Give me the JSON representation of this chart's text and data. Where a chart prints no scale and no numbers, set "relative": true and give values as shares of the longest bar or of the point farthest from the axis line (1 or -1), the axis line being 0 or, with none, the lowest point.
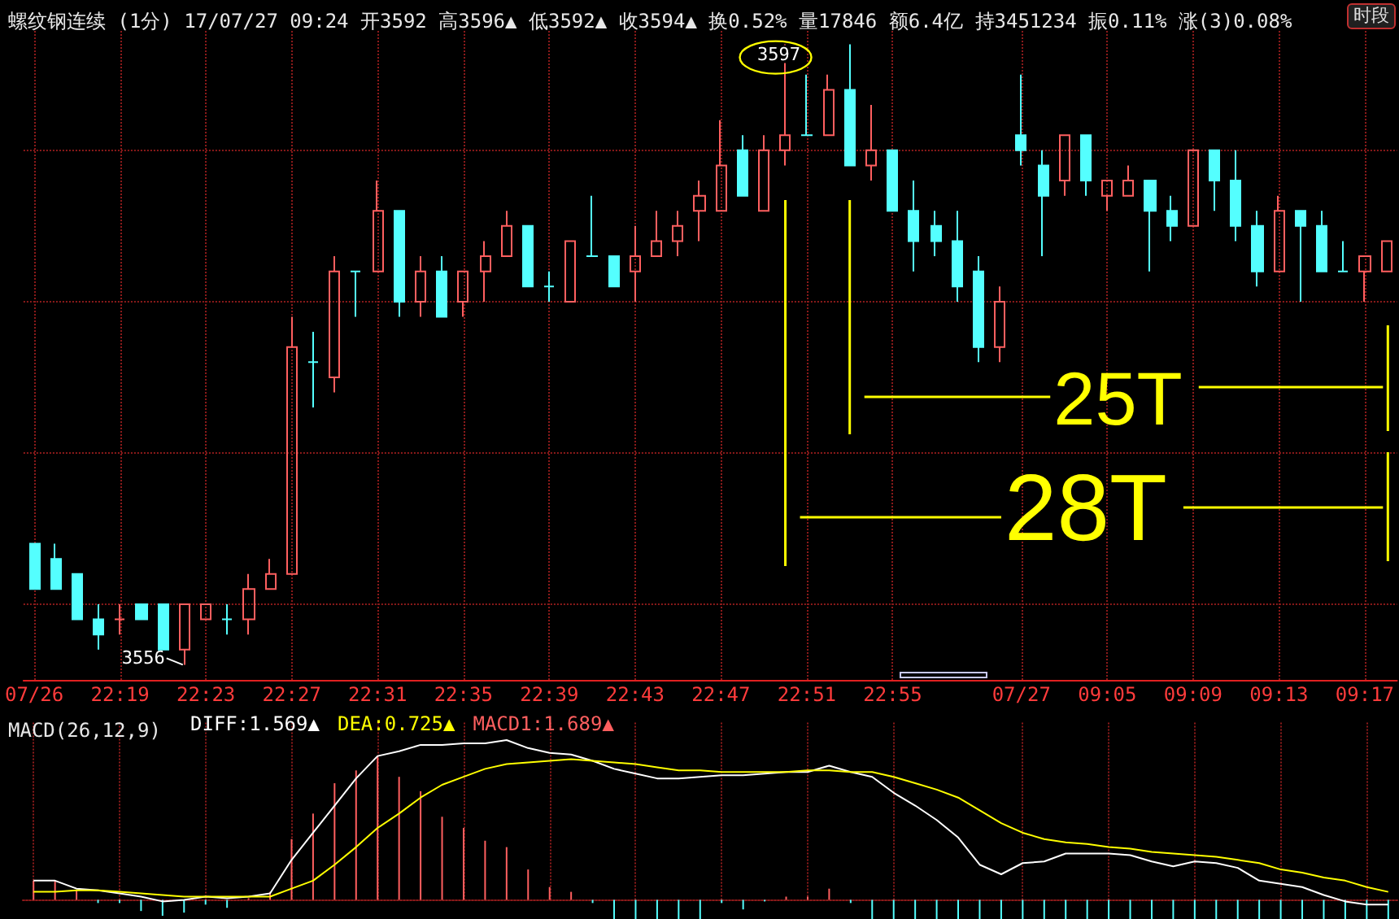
{
  "chart_data": [
    {
      "type": "candlestick",
      "title": "螺纹钢连续 (1分) 17/07/27 09:24 开3592 高3596▲ 低3592▲ 收3594▲ 换0.52% 量17846 额6.4亿 持3451234 振0.11% 涨(3)0.08%",
      "categories": [
        "07/26",
        null,
        null,
        null,
        "22:19",
        null,
        null,
        null,
        "22:23",
        null,
        null,
        null,
        "22:27",
        null,
        null,
        null,
        "22:31",
        null,
        null,
        null,
        "22:35",
        null,
        null,
        null,
        "22:39",
        null,
        null,
        null,
        "22:43",
        null,
        null,
        null,
        "22:47",
        null,
        null,
        null,
        "22:51",
        null,
        null,
        null,
        "22:55",
        null,
        null,
        null,
        null,
        null,
        "07/27",
        null,
        null,
        null,
        "09:05",
        null,
        null,
        null,
        "09:09",
        null,
        null,
        null,
        "09:13",
        null,
        null,
        null,
        "09:17",
        null
      ],
      "ohlc": [
        [
          3564,
          3564,
          3561,
          3561
        ],
        [
          3563,
          3564,
          3561,
          3561
        ],
        [
          3562,
          3562,
          3559,
          3559
        ],
        [
          3559,
          3560,
          3557,
          3558
        ],
        [
          3559,
          3560,
          3558,
          3559
        ],
        [
          3560,
          3560,
          3559,
          3559
        ],
        [
          3560,
          3560,
          3557,
          3557
        ],
        [
          3557,
          3560,
          3556,
          3560
        ],
        [
          3559,
          3560,
          3559,
          3560
        ],
        [
          3559,
          3560,
          3558,
          3559
        ],
        [
          3559,
          3562,
          3558,
          3561
        ],
        [
          3561,
          3563,
          3561,
          3562
        ],
        [
          3562,
          3579,
          3562,
          3577
        ],
        [
          3576,
          3578,
          3573,
          3576
        ],
        [
          3575,
          3583,
          3574,
          3582
        ],
        [
          3582,
          3582,
          3579,
          3582
        ],
        [
          3582,
          3588,
          3582,
          3586
        ],
        [
          3586,
          3586,
          3579,
          3580
        ],
        [
          3580,
          3583,
          3579,
          3582
        ],
        [
          3582,
          3583,
          3579,
          3579
        ],
        [
          3580,
          3582,
          3579,
          3582
        ],
        [
          3582,
          3584,
          3580,
          3583
        ],
        [
          3583,
          3586,
          3583,
          3585
        ],
        [
          3585,
          3585,
          3581,
          3581
        ],
        [
          3581,
          3582,
          3580,
          3581
        ],
        [
          3580,
          3584,
          3580,
          3584
        ],
        [
          3583,
          3587,
          3583,
          3583
        ],
        [
          3583,
          3583,
          3581,
          3581
        ],
        [
          3582,
          3585,
          3580,
          3583
        ],
        [
          3583,
          3586,
          3583,
          3584
        ],
        [
          3584,
          3586,
          3583,
          3585
        ],
        [
          3586,
          3588,
          3584,
          3587
        ],
        [
          3586,
          3592,
          3586,
          3589
        ],
        [
          3590,
          3591,
          3587,
          3587
        ],
        [
          3586,
          3591,
          3586,
          3590
        ],
        [
          3590,
          3597,
          3589,
          3591
        ],
        [
          3591,
          3595,
          3591,
          3591
        ],
        [
          3591,
          3595,
          3591,
          3594
        ],
        [
          3594,
          3597,
          3589,
          3589
        ],
        [
          3589,
          3593,
          3588,
          3590
        ],
        [
          3590,
          3590,
          3586,
          3586
        ],
        [
          3586,
          3588,
          3582,
          3584
        ],
        [
          3585,
          3586,
          3583,
          3584
        ],
        [
          3584,
          3586,
          3580,
          3581
        ],
        [
          3582,
          3583,
          3576,
          3577
        ],
        [
          3577,
          3581,
          3576,
          3580
        ],
        [
          3591,
          3595,
          3589,
          3590
        ],
        [
          3589,
          3590,
          3583,
          3587
        ],
        [
          3588,
          3591,
          3587,
          3591
        ],
        [
          3591,
          3591,
          3587,
          3588
        ],
        [
          3587,
          3588,
          3586,
          3588
        ],
        [
          3587,
          3589,
          3587,
          3588
        ],
        [
          3588,
          3588,
          3582,
          3586
        ],
        [
          3586,
          3587,
          3584,
          3585
        ],
        [
          3585,
          3590,
          3585,
          3590
        ],
        [
          3590,
          3590,
          3586,
          3588
        ],
        [
          3588,
          3590,
          3584,
          3585
        ],
        [
          3585,
          3586,
          3581,
          3582
        ],
        [
          3582,
          3587,
          3582,
          3586
        ],
        [
          3586,
          3586,
          3580,
          3585
        ],
        [
          3585,
          3586,
          3582,
          3582
        ],
        [
          3582,
          3584,
          3582,
          3582
        ],
        [
          3582,
          3583,
          3580,
          3583
        ],
        [
          3582,
          3584,
          3582,
          3584
        ]
      ],
      "colors": [
        "#54ffff",
        "#54ffff",
        "#54ffff",
        "#54ffff",
        "#ff5f5f",
        "#54ffff",
        "#54ffff",
        "#ff5f5f",
        "#ff5f5f",
        "#54ffff",
        "#ff5f5f",
        "#ff5f5f",
        "#ff5f5f",
        "#54ffff",
        "#ff5f5f",
        "#54ffff",
        "#ff5f5f",
        "#54ffff",
        "#ff5f5f",
        "#54ffff",
        "#ff5f5f",
        "#ff5f5f",
        "#ff5f5f",
        "#54ffff",
        "#54ffff",
        "#ff5f5f",
        "#54ffff",
        "#54ffff",
        "#ff5f5f",
        "#ff5f5f",
        "#ff5f5f",
        "#ff5f5f",
        "#ff5f5f",
        "#54ffff",
        "#ff5f5f",
        "#ff5f5f",
        "#54ffff",
        "#ff5f5f",
        "#54ffff",
        "#ff5f5f",
        "#54ffff",
        "#54ffff",
        "#54ffff",
        "#54ffff",
        "#54ffff",
        "#ff5f5f",
        "#54ffff",
        "#54ffff",
        "#ff5f5f",
        "#54ffff",
        "#ff5f5f",
        "#ff5f5f",
        "#54ffff",
        "#54ffff",
        "#ff5f5f",
        "#54ffff",
        "#54ffff",
        "#54ffff",
        "#ff5f5f",
        "#54ffff",
        "#54ffff",
        "#54ffff",
        "#ff5f5f",
        "#ff5f5f"
      ],
      "ylim": [
        3555,
        3598
      ],
      "yticks": [
        {
          "value": 3560,
          "label": null
        },
        {
          "value": 3570,
          "label": null
        },
        {
          "value": 3580,
          "label": null
        },
        {
          "value": 3590,
          "label": null
        }
      ],
      "tick_labels": "x",
      "grid": true,
      "annotations": [
        {
          "text": "3597",
          "y": 3597
        },
        "3556",
        "25T",
        "28T",
        "时段"
      ]
    },
    {
      "type": "line",
      "title": "MACD(26,12,9)",
      "relative": true,
      "tick_labels": false,
      "grid": "x",
      "marker": "none",
      "legend": "top left",
      "categories": [
        null,
        null,
        null,
        null,
        null,
        null,
        null,
        null,
        null,
        null,
        null,
        null,
        null,
        null,
        null,
        null,
        null,
        null,
        null,
        null,
        null,
        null,
        null,
        null,
        null,
        null,
        null,
        null,
        null,
        null,
        null,
        null,
        null,
        null,
        null,
        null,
        null,
        null,
        null,
        null,
        null,
        null,
        null,
        null,
        null,
        null,
        null,
        null,
        null,
        null,
        null,
        null,
        null,
        null,
        null,
        null,
        null,
        null,
        null,
        null,
        null,
        null,
        null,
        null
      ],
      "series": [
        {
          "name": "DIFF:1.569▲",
          "color": "#ffffff",
          "values": [
            0.12,
            0.12,
            0.07,
            0.06,
            0.04,
            0.02,
            -0.01,
            0,
            0.02,
            0.01,
            0.02,
            0.04,
            0.25,
            0.42,
            0.59,
            0.76,
            0.9,
            0.93,
            0.97,
            0.97,
            0.98,
            0.98,
            1,
            0.95,
            0.92,
            0.91,
            0.87,
            0.82,
            0.79,
            0.76,
            0.76,
            0.77,
            0.78,
            0.78,
            0.79,
            0.8,
            0.8,
            0.84,
            0.8,
            0.77,
            0.67,
            0.59,
            0.5,
            0.39,
            0.22,
            0.16,
            0.23,
            0.24,
            0.29,
            0.29,
            0.29,
            0.28,
            0.24,
            0.21,
            0.24,
            0.23,
            0.2,
            0.12,
            0.1,
            0.08,
            0.03,
            -0.01,
            -0.03,
            -0.03
          ]
        },
        {
          "name": "DEA:0.725▲",
          "color": "#ffff00",
          "values": [
            0.05,
            0.05,
            0.06,
            0.06,
            0.05,
            0.04,
            0.03,
            0.02,
            0.02,
            0.02,
            0.02,
            0.02,
            0.07,
            0.12,
            0.22,
            0.33,
            0.45,
            0.54,
            0.64,
            0.72,
            0.77,
            0.82,
            0.85,
            0.86,
            0.87,
            0.88,
            0.87,
            0.86,
            0.85,
            0.83,
            0.81,
            0.81,
            0.8,
            0.8,
            0.8,
            0.8,
            0.81,
            0.81,
            0.8,
            0.8,
            0.77,
            0.73,
            0.69,
            0.64,
            0.56,
            0.48,
            0.42,
            0.38,
            0.36,
            0.35,
            0.33,
            0.32,
            0.3,
            0.29,
            0.28,
            0.27,
            0.25,
            0.23,
            0.19,
            0.17,
            0.14,
            0.12,
            0.08,
            0.05
          ]
        },
        {
          "name": "MACD1:1.689▲",
          "type": "bar",
          "color": "#ff5f5f",
          "values": [
            0.12,
            0.12,
            0.06,
            -0.02,
            -0.02,
            -0.07,
            -0.1,
            -0.08,
            -0.03,
            -0.05,
            0.01,
            0.05,
            0.38,
            0.54,
            0.73,
            0.81,
            0.9,
            0.77,
            0.68,
            0.52,
            0.45,
            0.37,
            0.33,
            0.19,
            0.08,
            0.05,
            -0.02,
            -0.12,
            -0.12,
            -0.12,
            -0.12,
            -0.12,
            -0.02,
            -0.06,
            -0.01,
            0.02,
            0.02,
            0.07,
            -0.02,
            -0.12,
            -0.12,
            -0.12,
            -0.12,
            -0.12,
            -0.12,
            -0.12,
            -0.12,
            -0.12,
            -0.12,
            -0.12,
            -0.12,
            -0.12,
            -0.12,
            -0.12,
            -0.12,
            -0.12,
            -0.12,
            -0.12,
            -0.12,
            -0.12,
            -0.12,
            -0.12,
            -0.12,
            -0.12
          ],
          "colors": [
            "#ff5f5f",
            "#ff5f5f",
            "#ff5f5f",
            "#54ffff",
            "#54ffff",
            "#54ffff",
            "#54ffff",
            "#54ffff",
            "#54ffff",
            "#54ffff",
            "#ff5f5f",
            "#ff5f5f",
            "#ff5f5f",
            "#ff5f5f",
            "#ff5f5f",
            "#ff5f5f",
            "#ff5f5f",
            "#ff5f5f",
            "#ff5f5f",
            "#ff5f5f",
            "#ff5f5f",
            "#ff5f5f",
            "#ff5f5f",
            "#ff5f5f",
            "#ff5f5f",
            "#ff5f5f",
            "#54ffff",
            "#54ffff",
            "#54ffff",
            "#54ffff",
            "#54ffff",
            "#54ffff",
            "#54ffff",
            "#54ffff",
            "#54ffff",
            "#ff5f5f",
            "#ff5f5f",
            "#ff5f5f",
            "#54ffff",
            "#54ffff",
            "#54ffff",
            "#54ffff",
            "#54ffff",
            "#54ffff",
            "#54ffff",
            "#54ffff",
            "#54ffff",
            "#54ffff",
            "#54ffff",
            "#54ffff",
            "#54ffff",
            "#54ffff",
            "#54ffff",
            "#54ffff",
            "#54ffff",
            "#54ffff",
            "#54ffff",
            "#54ffff",
            "#54ffff",
            "#54ffff",
            "#54ffff",
            "#54ffff",
            "#54ffff",
            "#54ffff"
          ]
        }
      ]
    }
  ]
}
